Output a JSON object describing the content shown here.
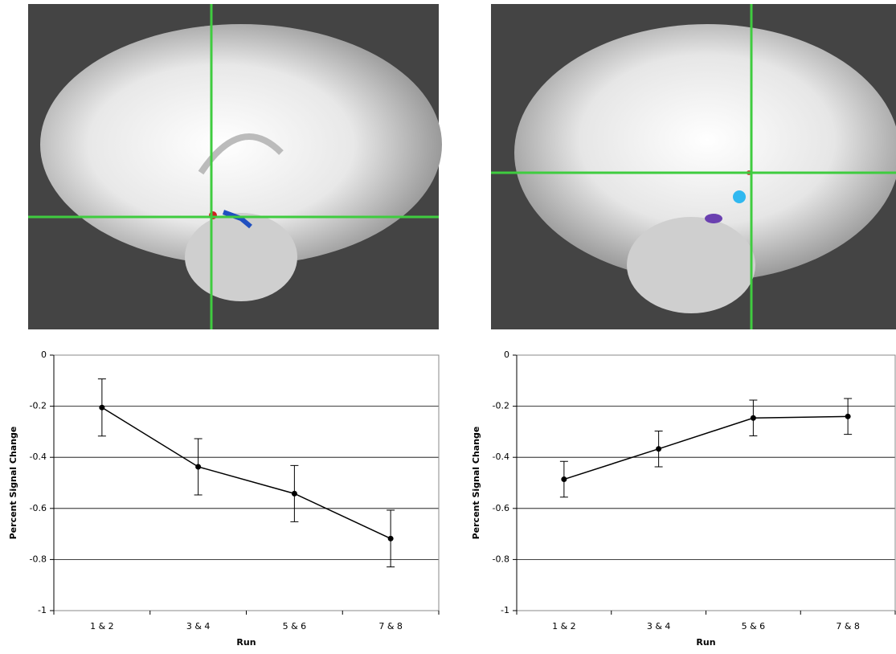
{
  "chart_data": [
    {
      "type": "line",
      "xlabel": "Run",
      "ylabel": "Percent Signal Change",
      "categories": [
        "1 & 2",
        "3 & 4",
        "5 & 6",
        "7 & 8"
      ],
      "values": [
        -0.205,
        -0.437,
        -0.542,
        -0.718
      ],
      "errors": [
        0.112,
        0.11,
        0.11,
        0.111
      ],
      "color": "#000000",
      "ylim": [
        -1,
        0
      ],
      "yticks": [
        -1,
        -0.8,
        -0.6,
        -0.4,
        -0.2,
        0
      ],
      "grid": true
    },
    {
      "type": "line",
      "xlabel": "Run",
      "ylabel": "Percent Signal Change",
      "categories": [
        "1 & 2",
        "3 & 4",
        "5 & 6",
        "7 & 8"
      ],
      "values": [
        -0.486,
        -0.367,
        -0.246,
        -0.24
      ],
      "errors": [
        0.07,
        0.07,
        0.07,
        0.07
      ],
      "color": "#000000",
      "ylim": [
        -1,
        0
      ],
      "yticks": [
        -1,
        -0.8,
        -0.6,
        -0.4,
        -0.2,
        0
      ],
      "grid": true
    }
  ]
}
